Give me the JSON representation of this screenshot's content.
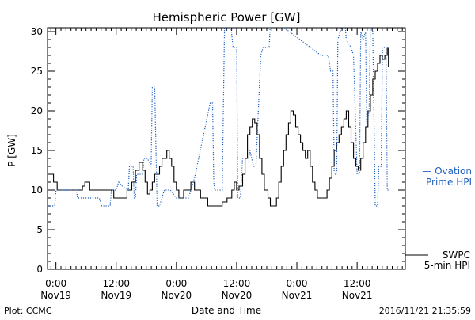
{
  "chart_data": {
    "type": "line",
    "title": "Hemispheric Power [GW]",
    "xlabel": "Date and Time",
    "ylabel": "P [GW]",
    "ylim": [
      0,
      30.5
    ],
    "xlim": [
      -0.07,
      2.9
    ],
    "x_unit": "days since 2016-11-19 00:00 UTC",
    "yticks": [
      0,
      5,
      10,
      15,
      20,
      25,
      30
    ],
    "xticks": [
      {
        "x": 0.0,
        "time": "0:00",
        "date": "Nov19"
      },
      {
        "x": 0.5,
        "time": "12:00",
        "date": "Nov19"
      },
      {
        "x": 1.0,
        "time": "0:00",
        "date": "Nov20"
      },
      {
        "x": 1.5,
        "time": "12:00",
        "date": "Nov20"
      },
      {
        "x": 2.0,
        "time": "0:00",
        "date": "Nov21"
      },
      {
        "x": 2.5,
        "time": "12:00",
        "date": "Nov21"
      }
    ],
    "series": [
      {
        "name": "SWPC 5-min HPI",
        "color": "#000000",
        "style": "solid-step",
        "points": [
          [
            -0.07,
            12
          ],
          [
            -0.03,
            12
          ],
          [
            -0.02,
            11
          ],
          [
            0.0,
            11
          ],
          [
            0.01,
            10
          ],
          [
            0.2,
            10
          ],
          [
            0.22,
            10.5
          ],
          [
            0.24,
            11
          ],
          [
            0.27,
            11
          ],
          [
            0.28,
            10
          ],
          [
            0.46,
            10
          ],
          [
            0.48,
            9
          ],
          [
            0.57,
            9
          ],
          [
            0.59,
            10
          ],
          [
            0.63,
            11
          ],
          [
            0.66,
            12.5
          ],
          [
            0.69,
            13.5
          ],
          [
            0.72,
            12.5
          ],
          [
            0.74,
            11
          ],
          [
            0.76,
            9.5
          ],
          [
            0.78,
            10
          ],
          [
            0.8,
            11
          ],
          [
            0.82,
            12
          ],
          [
            0.84,
            12
          ],
          [
            0.86,
            13
          ],
          [
            0.88,
            14
          ],
          [
            0.9,
            14
          ],
          [
            0.92,
            15
          ],
          [
            0.94,
            14
          ],
          [
            0.96,
            13
          ],
          [
            0.98,
            11
          ],
          [
            1.0,
            10
          ],
          [
            1.02,
            9
          ],
          [
            1.04,
            9
          ],
          [
            1.06,
            10
          ],
          [
            1.1,
            10
          ],
          [
            1.12,
            11
          ],
          [
            1.15,
            10
          ],
          [
            1.2,
            9
          ],
          [
            1.26,
            8
          ],
          [
            1.36,
            8
          ],
          [
            1.38,
            8.5
          ],
          [
            1.42,
            9
          ],
          [
            1.44,
            9
          ],
          [
            1.46,
            10
          ],
          [
            1.48,
            11
          ],
          [
            1.5,
            10
          ],
          [
            1.52,
            10.5
          ],
          [
            1.55,
            12
          ],
          [
            1.57,
            14
          ],
          [
            1.59,
            17
          ],
          [
            1.61,
            18
          ],
          [
            1.63,
            19
          ],
          [
            1.65,
            18.5
          ],
          [
            1.67,
            17
          ],
          [
            1.69,
            14
          ],
          [
            1.71,
            12
          ],
          [
            1.73,
            10
          ],
          [
            1.76,
            9
          ],
          [
            1.78,
            8
          ],
          [
            1.81,
            8
          ],
          [
            1.83,
            9
          ],
          [
            1.85,
            11
          ],
          [
            1.87,
            13
          ],
          [
            1.89,
            15
          ],
          [
            1.91,
            17
          ],
          [
            1.93,
            18.5
          ],
          [
            1.95,
            20
          ],
          [
            1.97,
            19.5
          ],
          [
            1.99,
            18
          ],
          [
            2.01,
            17
          ],
          [
            2.03,
            16
          ],
          [
            2.05,
            15
          ],
          [
            2.07,
            14
          ],
          [
            2.09,
            15
          ],
          [
            2.11,
            13
          ],
          [
            2.13,
            11
          ],
          [
            2.15,
            10
          ],
          [
            2.17,
            9
          ],
          [
            2.23,
            9
          ],
          [
            2.25,
            10
          ],
          [
            2.27,
            11.5
          ],
          [
            2.29,
            13
          ],
          [
            2.31,
            15
          ],
          [
            2.33,
            16
          ],
          [
            2.35,
            17
          ],
          [
            2.37,
            18
          ],
          [
            2.39,
            19
          ],
          [
            2.41,
            20
          ],
          [
            2.43,
            18
          ],
          [
            2.45,
            16
          ],
          [
            2.47,
            14
          ],
          [
            2.49,
            13
          ],
          [
            2.51,
            12.5
          ],
          [
            2.53,
            14
          ],
          [
            2.55,
            16
          ],
          [
            2.57,
            18
          ],
          [
            2.59,
            20
          ],
          [
            2.61,
            22
          ],
          [
            2.63,
            24
          ],
          [
            2.65,
            25
          ],
          [
            2.67,
            26
          ],
          [
            2.69,
            27
          ],
          [
            2.71,
            26.5
          ],
          [
            2.73,
            27
          ],
          [
            2.75,
            28
          ],
          [
            2.76,
            25.5
          ]
        ]
      },
      {
        "name": "Ovation Prime HPI",
        "color": "#1f5fbf",
        "style": "dotted",
        "points": [
          [
            -0.07,
            8
          ],
          [
            -0.01,
            8
          ],
          [
            0.0,
            10
          ],
          [
            0.05,
            10
          ],
          [
            0.06,
            10
          ],
          [
            0.17,
            10
          ],
          [
            0.18,
            9
          ],
          [
            0.36,
            9
          ],
          [
            0.38,
            8
          ],
          [
            0.45,
            8
          ],
          [
            0.46,
            10
          ],
          [
            0.5,
            10
          ],
          [
            0.52,
            11
          ],
          [
            0.55,
            10.5
          ],
          [
            0.6,
            10
          ],
          [
            0.61,
            13
          ],
          [
            0.64,
            13
          ],
          [
            0.65,
            9
          ],
          [
            0.66,
            9
          ],
          [
            0.67,
            12
          ],
          [
            0.7,
            12
          ],
          [
            0.72,
            12
          ],
          [
            0.73,
            14
          ],
          [
            0.76,
            14
          ],
          [
            0.79,
            13
          ],
          [
            0.8,
            23
          ],
          [
            0.82,
            23
          ],
          [
            0.84,
            8
          ],
          [
            0.86,
            8
          ],
          [
            0.9,
            10
          ],
          [
            0.95,
            10
          ],
          [
            1.0,
            9
          ],
          [
            1.1,
            9
          ],
          [
            1.12,
            10
          ],
          [
            1.15,
            11.5
          ],
          [
            1.28,
            21
          ],
          [
            1.3,
            21
          ],
          [
            1.31,
            11
          ],
          [
            1.32,
            10
          ],
          [
            1.38,
            10
          ],
          [
            1.4,
            31
          ],
          [
            1.45,
            31
          ],
          [
            1.47,
            28
          ],
          [
            1.5,
            28
          ],
          [
            1.51,
            9
          ],
          [
            1.53,
            9
          ],
          [
            1.55,
            14
          ],
          [
            1.59,
            14
          ],
          [
            1.6,
            14
          ],
          [
            1.61,
            15
          ],
          [
            1.64,
            13
          ],
          [
            1.66,
            13
          ],
          [
            1.7,
            27
          ],
          [
            1.72,
            28
          ],
          [
            1.76,
            28
          ],
          [
            1.77,
            28
          ],
          [
            1.78,
            31
          ],
          [
            1.8,
            31
          ],
          [
            1.81,
            31
          ],
          [
            1.85,
            31
          ],
          [
            2.2,
            27
          ],
          [
            2.26,
            27
          ],
          [
            2.28,
            25
          ],
          [
            2.3,
            25
          ],
          [
            2.31,
            12
          ],
          [
            2.33,
            12
          ],
          [
            2.34,
            29
          ],
          [
            2.38,
            31
          ],
          [
            2.4,
            31
          ],
          [
            2.41,
            29
          ],
          [
            2.45,
            28
          ],
          [
            2.47,
            27
          ],
          [
            2.5,
            12
          ],
          [
            2.52,
            12
          ],
          [
            2.53,
            30
          ],
          [
            2.55,
            29
          ],
          [
            2.57,
            30
          ],
          [
            2.58,
            18
          ],
          [
            2.6,
            20
          ],
          [
            2.61,
            31
          ],
          [
            2.63,
            30
          ],
          [
            2.65,
            8
          ],
          [
            2.67,
            8
          ],
          [
            2.68,
            13
          ],
          [
            2.7,
            13
          ],
          [
            2.71,
            28
          ],
          [
            2.74,
            28
          ],
          [
            2.75,
            10
          ],
          [
            2.76,
            10
          ]
        ]
      }
    ],
    "legend": [
      {
        "label_line1": "— Ovation",
        "label_line2": "Prime HPI",
        "color": "#1f5fbf",
        "placement": "right-middle"
      },
      {
        "label_line1": "SWPC",
        "label_line2": "5-min HPI",
        "color": "#000000",
        "placement": "right-bottom"
      }
    ]
  },
  "footer": {
    "left": "Plot: CCMC",
    "right": "2016/11/21 21:35:59"
  }
}
